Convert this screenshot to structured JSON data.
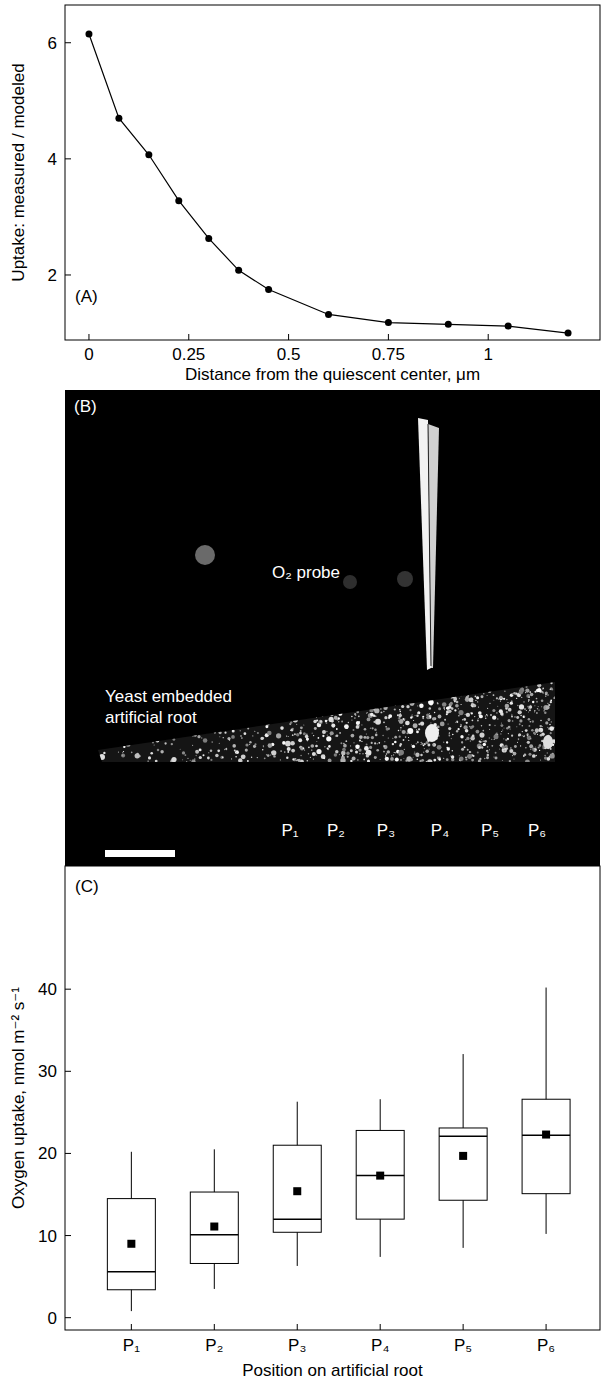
{
  "chart_data": [
    {
      "type": "line",
      "panel_label": "(A)",
      "x_label": "Distance from the quiescent center, μm",
      "y_label": "Uptake: measured / modeled",
      "x": [
        0,
        0.075,
        0.15,
        0.225,
        0.3,
        0.375,
        0.45,
        0.6,
        0.75,
        0.9,
        1.05,
        1.2
      ],
      "values": [
        6.15,
        4.7,
        4.07,
        3.28,
        2.63,
        2.08,
        1.75,
        1.32,
        1.18,
        1.15,
        1.12,
        1.0
      ],
      "color": "#000000",
      "marker": "circle",
      "line_style": "solid",
      "xlim": [
        -0.06,
        1.28
      ],
      "xticks": [
        0,
        0.25,
        0.5,
        0.75,
        1
      ],
      "ylim": [
        0.88,
        6.65
      ],
      "yticks": [
        2,
        4,
        6
      ],
      "grid": false
    },
    {
      "type": "box",
      "panel_label": "(C)",
      "x_label": "Position on artificial root",
      "y_label": "Oxygen uptake, nmol m⁻² s⁻¹",
      "categories": [
        "P₁",
        "P₂",
        "P₃",
        "P₄",
        "P₅",
        "P₆"
      ],
      "whisker_low": [
        0.8,
        3.5,
        6.3,
        7.4,
        8.5,
        10.2
      ],
      "q1": [
        3.4,
        6.6,
        10.4,
        12.0,
        14.3,
        15.1
      ],
      "median": [
        5.6,
        10.1,
        12.0,
        17.3,
        22.1,
        22.2
      ],
      "q3": [
        14.5,
        15.3,
        21.0,
        22.8,
        23.1,
        26.6
      ],
      "whisker_high": [
        20.2,
        20.5,
        26.3,
        26.6,
        32.1,
        40.2
      ],
      "mean": [
        9.0,
        11.1,
        15.4,
        17.3,
        19.7,
        22.3
      ],
      "color": "#000000",
      "ylim": [
        -1.5,
        55
      ],
      "yticks": [
        0,
        10,
        20,
        30,
        40
      ],
      "grid": false
    }
  ],
  "image_panel": {
    "panel_label": "(B)",
    "probe_label": "O₂ probe",
    "root_label": "Yeast embedded artificial root",
    "positions": [
      "P₁",
      "P₂",
      "P₃",
      "P₄",
      "P₅",
      "P₆"
    ]
  }
}
